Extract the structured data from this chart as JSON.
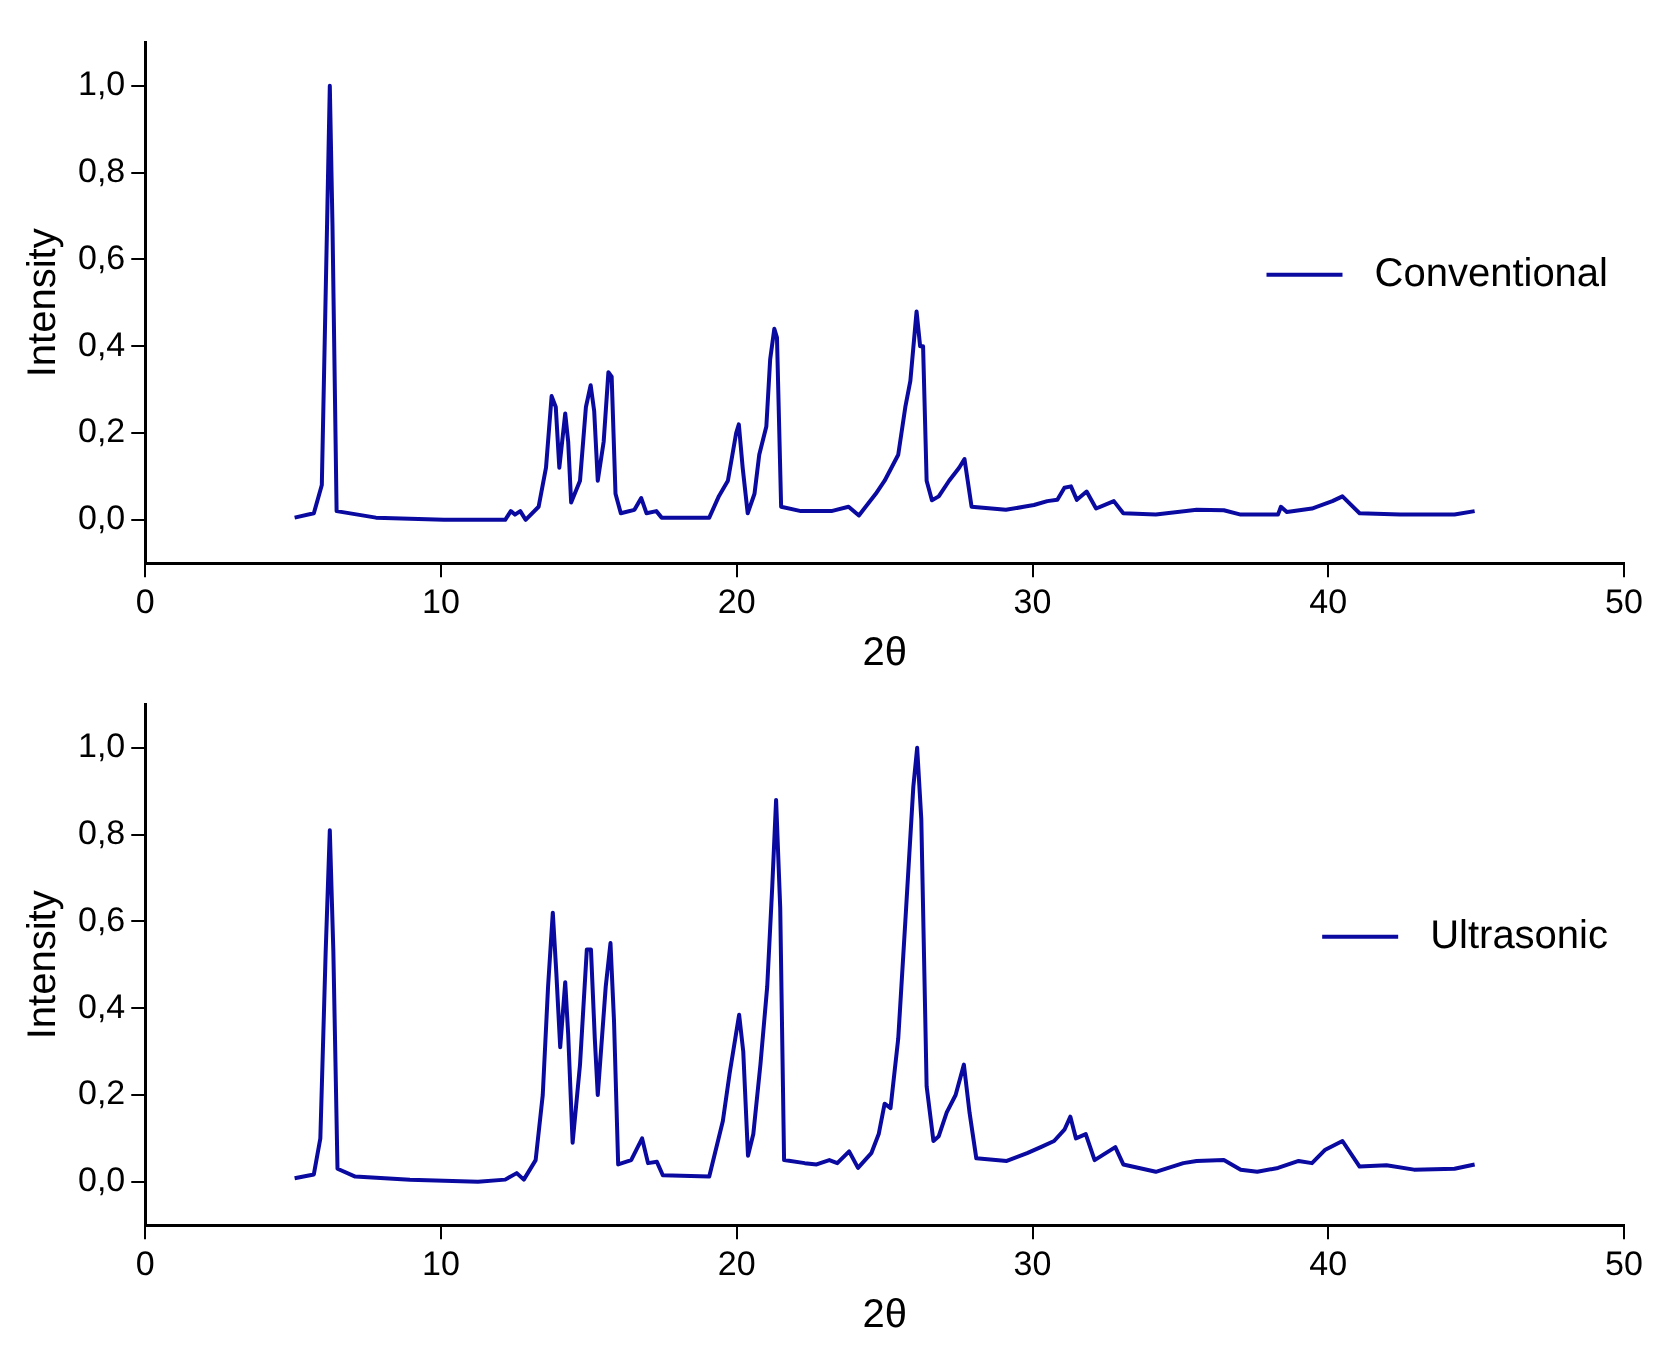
{
  "chart_data": [
    {
      "type": "line",
      "xlabel": "2θ",
      "ylabel": "Intensity",
      "xlim": [
        0,
        50
      ],
      "xticks": [
        0,
        10,
        20,
        30,
        40,
        50
      ],
      "ylim": [
        -0.1,
        1.1
      ],
      "yticks": [
        {
          "value": 0,
          "label": "0,0"
        },
        {
          "value": 0.2,
          "label": "0,2"
        },
        {
          "value": 0.4,
          "label": "0,4"
        },
        {
          "value": 0.6,
          "label": "0,6"
        },
        {
          "value": 0.8,
          "label": "0,8"
        },
        {
          "value": 1,
          "label": "1,0"
        }
      ],
      "grid": false,
      "legend": "right",
      "series": [
        {
          "name": "Conventional",
          "color": "#0a0aa0",
          "x": [
            5.05,
            5.7,
            5.97,
            6.15,
            6.24,
            6.33,
            6.47,
            7.8,
            10.1,
            12.17,
            12.36,
            12.5,
            12.68,
            12.86,
            13.3,
            13.55,
            13.74,
            13.88,
            14.0,
            14.2,
            14.3,
            14.4,
            14.7,
            14.9,
            15.06,
            15.18,
            15.3,
            15.5,
            15.66,
            15.77,
            15.9,
            16.08,
            16.54,
            16.77,
            16.95,
            17.28,
            17.46,
            19.07,
            19.4,
            19.7,
            19.98,
            20.07,
            20.2,
            20.37,
            20.6,
            20.76,
            21.0,
            21.13,
            21.27,
            21.36,
            21.5,
            22.17,
            23.2,
            23.78,
            24.13,
            24.7,
            25.0,
            25.46,
            25.7,
            25.87,
            26.08,
            26.2,
            26.3,
            26.42,
            26.6,
            26.83,
            27.18,
            27.52,
            27.7,
            27.94,
            29.1,
            30.05,
            30.5,
            30.84,
            31.08,
            31.3,
            31.5,
            31.83,
            32.15,
            32.75,
            33.07,
            34.17,
            35.55,
            36.47,
            37.04,
            38.3,
            38.4,
            38.6,
            39.45,
            40.14,
            40.48,
            41.06,
            42.43,
            44.27,
            44.95
          ],
          "values": [
            0.005,
            0.015,
            0.08,
            0.69,
            1.0,
            0.68,
            0.02,
            0.005,
            0,
            0,
            0.02,
            0.012,
            0.02,
            0,
            0.03,
            0.12,
            0.285,
            0.26,
            0.12,
            0.245,
            0.18,
            0.04,
            0.09,
            0.26,
            0.31,
            0.25,
            0.09,
            0.18,
            0.34,
            0.33,
            0.06,
            0.015,
            0.023,
            0.05,
            0.015,
            0.02,
            0.005,
            0.005,
            0.055,
            0.09,
            0.2,
            0.22,
            0.12,
            0.015,
            0.06,
            0.15,
            0.215,
            0.37,
            0.44,
            0.42,
            0.03,
            0.02,
            0.02,
            0.03,
            0.01,
            0.06,
            0.09,
            0.15,
            0.26,
            0.32,
            0.48,
            0.4,
            0.4,
            0.09,
            0.045,
            0.054,
            0.09,
            0.12,
            0.14,
            0.03,
            0.023,
            0.034,
            0.043,
            0.046,
            0.074,
            0.077,
            0.046,
            0.065,
            0.026,
            0.043,
            0.015,
            0.012,
            0.023,
            0.022,
            0.012,
            0.012,
            0.03,
            0.018,
            0.026,
            0.043,
            0.054,
            0.015,
            0.012,
            0.012,
            0.02
          ]
        }
      ]
    },
    {
      "type": "line",
      "xlabel": "2θ",
      "ylabel": "Intensity",
      "xlim": [
        0,
        50
      ],
      "xticks": [
        0,
        10,
        20,
        30,
        40,
        50
      ],
      "ylim": [
        -0.1,
        1.1
      ],
      "yticks": [
        {
          "value": 0,
          "label": "0,0"
        },
        {
          "value": 0.2,
          "label": "0,2"
        },
        {
          "value": 0.4,
          "label": "0,4"
        },
        {
          "value": 0.6,
          "label": "0,6"
        },
        {
          "value": 0.8,
          "label": "0,8"
        },
        {
          "value": 1,
          "label": "1,0"
        }
      ],
      "grid": false,
      "legend": "right",
      "series": [
        {
          "name": "Ultrasonic",
          "color": "#0a0aa0",
          "x": [
            5.05,
            5.7,
            5.92,
            6.1,
            6.24,
            6.36,
            6.5,
            7.1,
            8.95,
            11.25,
            12.17,
            12.56,
            12.8,
            13.2,
            13.44,
            13.62,
            13.78,
            13.9,
            14.03,
            14.2,
            14.3,
            14.45,
            14.7,
            14.93,
            15.07,
            15.2,
            15.3,
            15.57,
            15.73,
            15.85,
            15.99,
            16.43,
            16.8,
            17.0,
            17.3,
            17.5,
            19.07,
            19.53,
            19.76,
            20.08,
            20.22,
            20.38,
            20.56,
            20.8,
            21.03,
            21.2,
            21.33,
            21.47,
            21.6,
            22.3,
            22.7,
            23.13,
            23.4,
            23.8,
            24.1,
            24.55,
            24.8,
            25.0,
            25.2,
            25.46,
            25.7,
            25.97,
            26.1,
            26.24,
            26.42,
            26.65,
            26.83,
            27.1,
            27.4,
            27.68,
            27.87,
            28.1,
            29.13,
            29.82,
            30.28,
            30.73,
            31.08,
            31.28,
            31.47,
            31.8,
            32.1,
            32.8,
            33.07,
            34.17,
            35.1,
            35.55,
            36.47,
            37.04,
            37.6,
            38.3,
            39.0,
            39.45,
            39.9,
            40.48,
            41.06,
            41.97,
            42.9,
            44.27,
            44.95
          ],
          "values": [
            0.008,
            0.017,
            0.1,
            0.53,
            0.81,
            0.53,
            0.03,
            0.012,
            0.005,
            0,
            0.005,
            0.02,
            0.005,
            0.05,
            0.2,
            0.45,
            0.62,
            0.48,
            0.31,
            0.46,
            0.34,
            0.09,
            0.27,
            0.535,
            0.535,
            0.33,
            0.2,
            0.45,
            0.55,
            0.37,
            0.04,
            0.05,
            0.1,
            0.043,
            0.046,
            0.015,
            0.012,
            0.14,
            0.25,
            0.385,
            0.3,
            0.06,
            0.11,
            0.27,
            0.45,
            0.68,
            0.88,
            0.63,
            0.05,
            0.043,
            0.04,
            0.05,
            0.043,
            0.07,
            0.032,
            0.066,
            0.11,
            0.18,
            0.17,
            0.33,
            0.6,
            0.91,
            1.0,
            0.835,
            0.22,
            0.094,
            0.105,
            0.16,
            0.2,
            0.27,
            0.16,
            0.054,
            0.048,
            0.066,
            0.08,
            0.094,
            0.12,
            0.15,
            0.1,
            0.11,
            0.05,
            0.08,
            0.04,
            0.023,
            0.043,
            0.048,
            0.05,
            0.028,
            0.023,
            0.032,
            0.048,
            0.043,
            0.074,
            0.094,
            0.035,
            0.038,
            0.028,
            0.03,
            0.04
          ]
        }
      ]
    }
  ]
}
